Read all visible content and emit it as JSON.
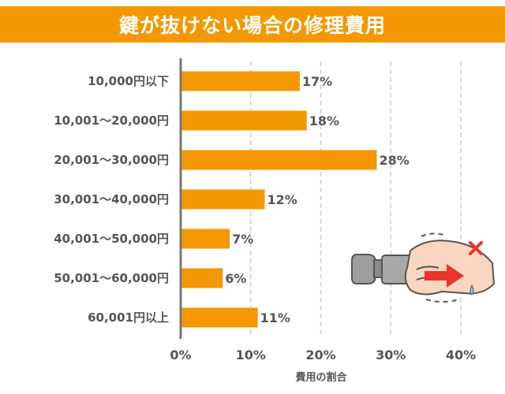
{
  "colors": {
    "accent": "#F39800",
    "bar": "#F39800",
    "text": "#555555",
    "grid": "#CCCCCC",
    "axis": "#777777"
  },
  "chart_data": {
    "type": "bar",
    "orientation": "horizontal",
    "title": "鍵が抜けない場合の修理費用",
    "xlabel": "費用の割合",
    "ylabel": "",
    "categories": [
      "10,000円以下",
      "10,001～20,000円",
      "20,001～30,000円",
      "30,001～40,000円",
      "40,001～50,000円",
      "50,001～60,000円",
      "60,001円以上"
    ],
    "values": [
      17,
      18,
      28,
      12,
      7,
      6,
      11
    ],
    "value_labels": [
      "17%",
      "18%",
      "28%",
      "12%",
      "7%",
      "6%",
      "11%"
    ],
    "xlim": [
      0,
      40
    ],
    "xticks": [
      0,
      10,
      20,
      30,
      40
    ],
    "xtick_labels": [
      "0%",
      "10%",
      "20%",
      "30%",
      "40%"
    ],
    "grid": "vertical-dashed",
    "legend": "none"
  },
  "illustration": {
    "icon": "hand-pulling-stuck-key-icon",
    "mark": "red-cross-icon"
  }
}
